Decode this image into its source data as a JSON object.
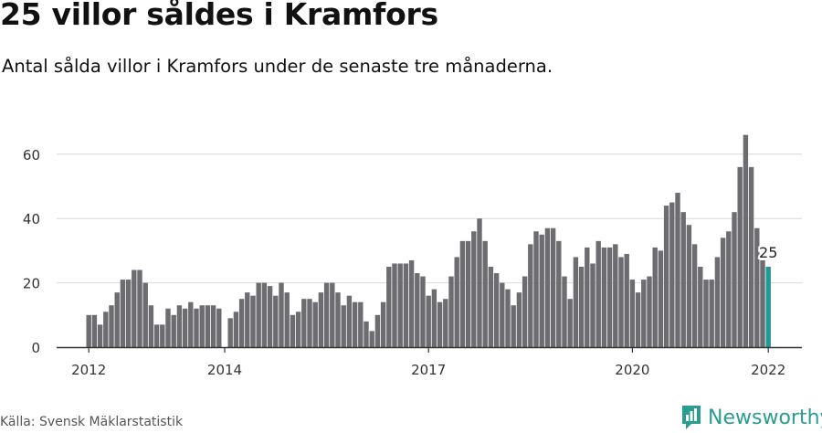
{
  "header": {
    "title": "25 villor såldes i Kramfors",
    "subtitle": "Antal sålda villor i Kramfors under de senaste tre månaderna."
  },
  "footer": {
    "source": "Källa: Svensk Mäklarstatistik",
    "brand": "Newsworthy"
  },
  "colors": {
    "bar": "#6d6c71",
    "highlight": "#1f9a94",
    "grid": "#d9d9d9",
    "axis": "#333333",
    "brand": "#2a9d8f"
  },
  "icons": {
    "brand_logo": "newsworthy-logo-icon"
  },
  "chart_data": {
    "type": "bar",
    "title": "25 villor såldes i Kramfors",
    "subtitle": "Antal sålda villor i Kramfors under de senaste tre månaderna.",
    "x_unit": "month",
    "x_start": "2012-01",
    "x_ticks": [
      "2012",
      "2014",
      "2017",
      "2020",
      "2022"
    ],
    "y_ticks": [
      0,
      20,
      40,
      60
    ],
    "ylim": [
      0,
      66
    ],
    "grid": true,
    "highlight_label": "25",
    "values": [
      10,
      10,
      7,
      11,
      13,
      17,
      21,
      21,
      24,
      24,
      20,
      13,
      7,
      7,
      12,
      10,
      13,
      12,
      14,
      12,
      13,
      13,
      13,
      12,
      0,
      9,
      11,
      15,
      17,
      16,
      20,
      20,
      19,
      16,
      20,
      17,
      10,
      11,
      15,
      15,
      14,
      17,
      20,
      20,
      17,
      13,
      16,
      14,
      14,
      8,
      5,
      10,
      14,
      25,
      26,
      26,
      26,
      27,
      23,
      22,
      16,
      18,
      14,
      15,
      22,
      28,
      33,
      33,
      36,
      40,
      33,
      25,
      23,
      20,
      18,
      13,
      17,
      22,
      32,
      36,
      35,
      37,
      37,
      33,
      22,
      15,
      28,
      25,
      31,
      26,
      33,
      31,
      31,
      32,
      28,
      29,
      21,
      17,
      21,
      22,
      31,
      30,
      44,
      45,
      48,
      42,
      38,
      32,
      25,
      21,
      21,
      28,
      34,
      36,
      42,
      56,
      66,
      56,
      37,
      27,
      25
    ]
  }
}
